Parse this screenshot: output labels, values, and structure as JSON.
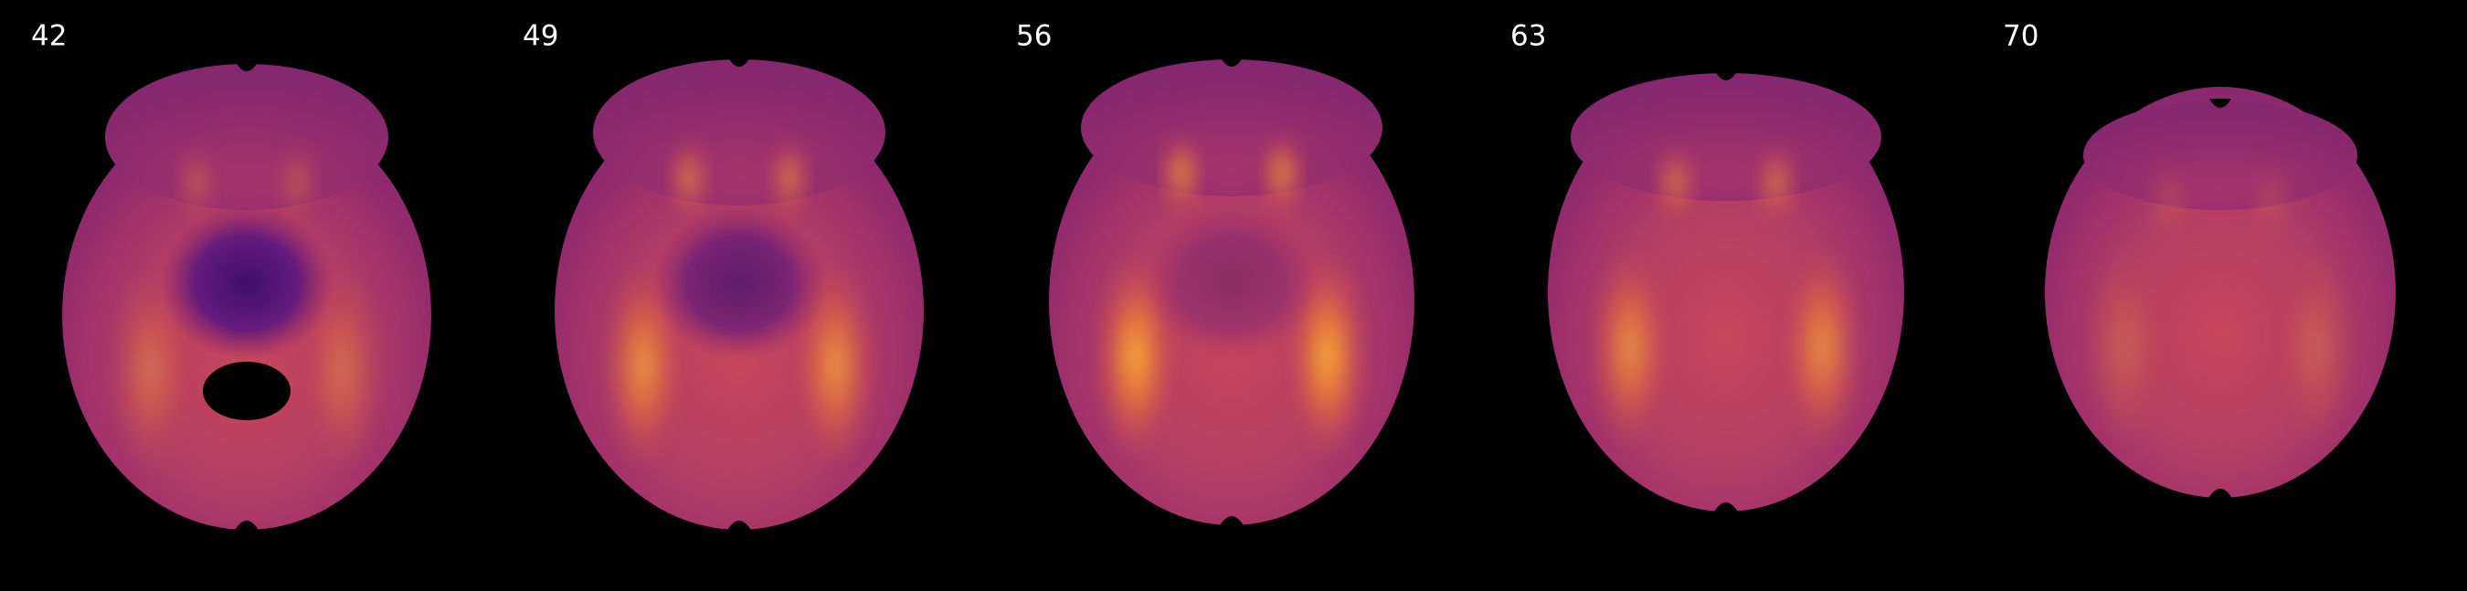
{
  "slices": [
    {
      "label": "42"
    },
    {
      "label": "49"
    },
    {
      "label": "56"
    },
    {
      "label": "63"
    },
    {
      "label": "70"
    }
  ]
}
